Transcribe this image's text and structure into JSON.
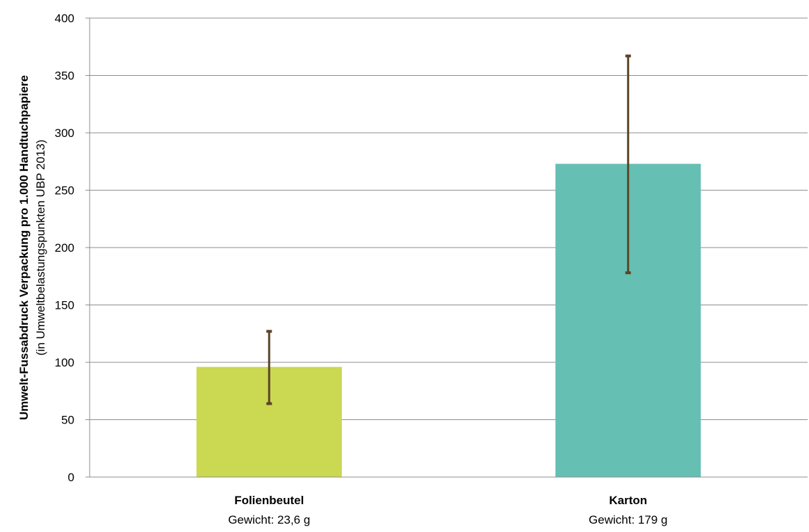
{
  "chart_data": {
    "type": "bar",
    "categories": [
      "Folienbeutel",
      "Karton"
    ],
    "category_sublabels": [
      "Gewicht: 23,6  g",
      "Gewicht: 179 g"
    ],
    "values": [
      96,
      273
    ],
    "error_bars": [
      {
        "low": 64,
        "high": 127
      },
      {
        "low": 178,
        "high": 367
      }
    ],
    "bar_colors": [
      "#cbd851",
      "#66bfb3"
    ],
    "error_bar_color": "#5c4326",
    "ylabel": "Umwelt-Fussabdruck Verpackung pro 1.000 Handtuchpapiere",
    "ylabel_sub": "(in Umweltbelastungspunkten UBP 2013)",
    "xlabel": "",
    "title": "",
    "ylim": [
      0,
      400
    ],
    "yticks": [
      0,
      50,
      100,
      150,
      200,
      250,
      300,
      350,
      400
    ],
    "grid": true,
    "legend": "none"
  }
}
